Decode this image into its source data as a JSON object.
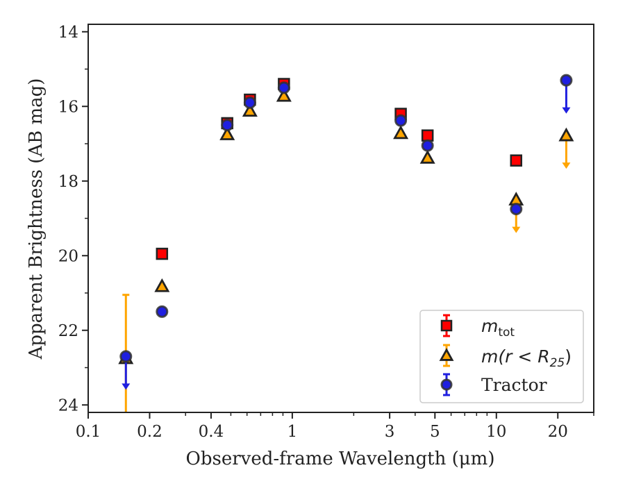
{
  "chart_data": {
    "type": "scatter",
    "xlabel_prefix": "Observed-frame Wavelength (",
    "xlabel_unit": "μm",
    "xlabel_suffix": ")",
    "ylabel": "Apparent Brightness (AB mag)",
    "xscale": "log",
    "xlim": [
      0.1,
      30
    ],
    "ylim": [
      24.2,
      13.8
    ],
    "y_inverted": true,
    "x_ticks": [
      {
        "value": 0.1,
        "label": "0.1"
      },
      {
        "value": 0.2,
        "label": "0.2"
      },
      {
        "value": 0.4,
        "label": "0.4"
      },
      {
        "value": 1,
        "label": "1"
      },
      {
        "value": 3,
        "label": "3"
      },
      {
        "value": 5,
        "label": "5"
      },
      {
        "value": 10,
        "label": "10"
      },
      {
        "value": 20,
        "label": "20"
      }
    ],
    "x_minor_ticks": [
      0.3,
      0.5,
      0.6,
      0.7,
      0.8,
      0.9,
      2,
      4,
      6,
      7,
      8,
      9,
      30
    ],
    "y_ticks": [
      {
        "value": 14,
        "label": "14"
      },
      {
        "value": 16,
        "label": "16"
      },
      {
        "value": 18,
        "label": "18"
      },
      {
        "value": 20,
        "label": "20"
      },
      {
        "value": 22,
        "label": "22"
      },
      {
        "value": 24,
        "label": "24"
      }
    ],
    "y_minor_ticks": [
      15,
      17,
      19,
      21,
      23
    ],
    "legend_position": "lower-right",
    "series": [
      {
        "name": "m_tot",
        "legend_main": "m",
        "legend_sub": "tot",
        "marker": "square",
        "color": "#ff0000",
        "edge_color": "#222222",
        "points": [
          {
            "x": 0.23,
            "y": 19.95
          },
          {
            "x": 0.48,
            "y": 16.45
          },
          {
            "x": 0.62,
            "y": 15.82
          },
          {
            "x": 0.91,
            "y": 15.4
          },
          {
            "x": 3.4,
            "y": 16.2
          },
          {
            "x": 4.6,
            "y": 16.78
          },
          {
            "x": 12.5,
            "y": 17.45
          }
        ]
      },
      {
        "name": "m(r < R25)",
        "legend_main": "m(r < R",
        "legend_sub": "25",
        "legend_tail": ")",
        "marker": "triangle",
        "color": "#ffa500",
        "edge_color": "#222222",
        "points": [
          {
            "x": 0.153,
            "y": 22.75,
            "err_up": 1.7,
            "err_down": 1.5
          },
          {
            "x": 0.23,
            "y": 20.82
          },
          {
            "x": 0.48,
            "y": 16.75
          },
          {
            "x": 0.62,
            "y": 16.12
          },
          {
            "x": 0.91,
            "y": 15.72
          },
          {
            "x": 3.4,
            "y": 16.72
          },
          {
            "x": 4.6,
            "y": 17.38
          },
          {
            "x": 12.5,
            "y": 18.5,
            "upper_limit": true
          },
          {
            "x": 22,
            "y": 16.78,
            "upper_limit": true
          }
        ]
      },
      {
        "name": "Tractor",
        "legend_main": "Tractor",
        "marker": "circle",
        "color": "#1f1fe0",
        "edge_color": "#333333",
        "points": [
          {
            "x": 0.153,
            "y": 22.7,
            "upper_limit": true
          },
          {
            "x": 0.23,
            "y": 21.5
          },
          {
            "x": 0.48,
            "y": 16.5
          },
          {
            "x": 0.62,
            "y": 15.9
          },
          {
            "x": 0.91,
            "y": 15.5
          },
          {
            "x": 3.4,
            "y": 16.38
          },
          {
            "x": 4.6,
            "y": 17.05
          },
          {
            "x": 12.5,
            "y": 18.75
          },
          {
            "x": 22,
            "y": 15.3,
            "upper_limit": true
          }
        ]
      }
    ]
  }
}
